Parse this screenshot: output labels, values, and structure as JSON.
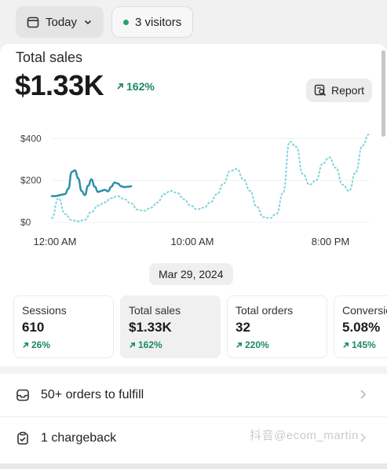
{
  "topbar": {
    "date_label": "Today",
    "visitors_label": "3 visitors"
  },
  "sales": {
    "title": "Total sales",
    "value": "$1.33K",
    "delta": "162%",
    "report_label": "Report"
  },
  "chart_data": {
    "type": "line",
    "ylim": [
      0,
      450
    ],
    "y_ticks": [
      "$400",
      "$200",
      "$0"
    ],
    "x_ticks": [
      "12:00 AM",
      "10:00 AM",
      "8:00 PM"
    ],
    "series": [
      {
        "style": "solid",
        "color": "#2b8fa8",
        "x": [
          0,
          0.5,
          1,
          1.5,
          2,
          2.5,
          3,
          3.5,
          4,
          4.5,
          5,
          5.5,
          6,
          6.5,
          7,
          7.5,
          8,
          8.5,
          9,
          9.5,
          10,
          10.5,
          11,
          11.5,
          12
        ],
        "values": [
          125,
          125,
          128,
          132,
          135,
          160,
          240,
          248,
          210,
          150,
          130,
          175,
          205,
          170,
          145,
          150,
          155,
          148,
          170,
          190,
          185,
          172,
          168,
          170,
          172
        ]
      },
      {
        "style": "dotted",
        "color": "#7fd3da",
        "x": [
          0,
          1,
          2,
          3,
          4,
          5,
          6,
          7,
          8,
          9,
          10,
          11,
          12,
          13,
          14,
          15,
          16,
          17,
          18,
          19,
          20,
          21,
          22,
          23,
          24,
          25,
          26,
          27,
          28,
          29,
          30,
          31,
          32,
          33,
          34,
          35,
          36,
          37,
          38,
          39,
          40,
          41,
          42,
          43,
          44,
          45,
          46,
          47,
          48
        ],
        "values": [
          20,
          115,
          40,
          10,
          5,
          12,
          50,
          80,
          95,
          115,
          125,
          110,
          90,
          60,
          55,
          70,
          95,
          135,
          150,
          140,
          110,
          80,
          62,
          70,
          95,
          135,
          185,
          245,
          255,
          205,
          150,
          75,
          25,
          20,
          40,
          140,
          385,
          360,
          230,
          180,
          200,
          280,
          310,
          260,
          180,
          150,
          240,
          365,
          420
        ]
      }
    ]
  },
  "date_pill": "Mar 29, 2024",
  "metrics": [
    {
      "label": "Sessions",
      "value": "610",
      "delta": "26%"
    },
    {
      "label": "Total sales",
      "value": "$1.33K",
      "delta": "162%"
    },
    {
      "label": "Total orders",
      "value": "32",
      "delta": "220%"
    },
    {
      "label": "Conversion rate",
      "value": "5.08%",
      "delta": "145%"
    }
  ],
  "rows": {
    "fulfill": "50+ orders to fulfill",
    "chargeback": "1 chargeback"
  },
  "watermark": "抖音@ecom_martin",
  "colors": {
    "positive": "#1c8a62",
    "solid_line": "#2b8fa8",
    "dotted_line": "#7fd3da"
  }
}
